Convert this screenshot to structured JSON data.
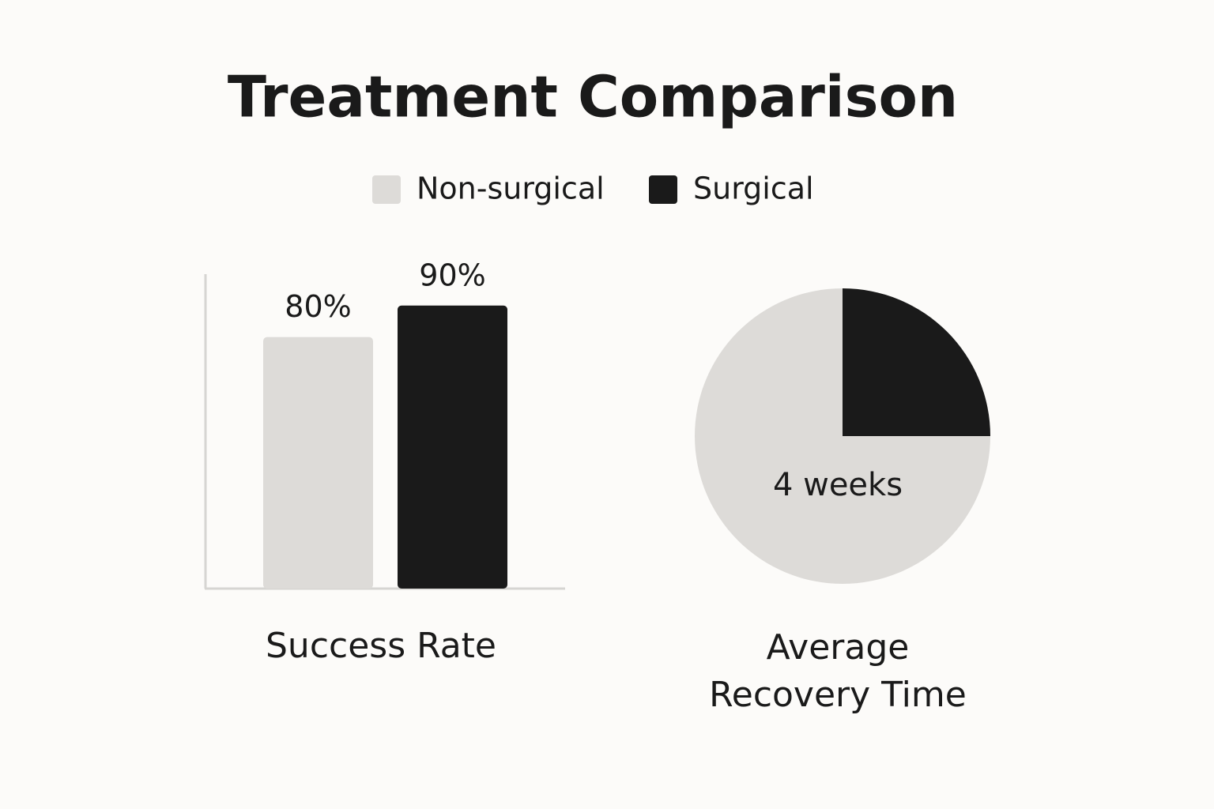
{
  "title": "Treatment Comparison",
  "chart_data": [
    {
      "type": "bar",
      "xlabel": "Success Rate",
      "categories": [
        null
      ],
      "series": [
        {
          "name": "Non-surgical",
          "color": "#dddbd8",
          "values": [
            80
          ],
          "value_labels": [
            "80%"
          ]
        },
        {
          "name": "Surgical",
          "color": "#1a1a1a",
          "values": [
            90
          ],
          "value_labels": [
            "90%"
          ]
        }
      ],
      "ylim": [
        0,
        100
      ],
      "grid": false
    },
    {
      "type": "pie",
      "title": "Average Recovery Time",
      "annotation": "4 weeks",
      "values": [
        75,
        25
      ],
      "colors": [
        "#dddbd8",
        "#1a1a1a"
      ]
    }
  ]
}
